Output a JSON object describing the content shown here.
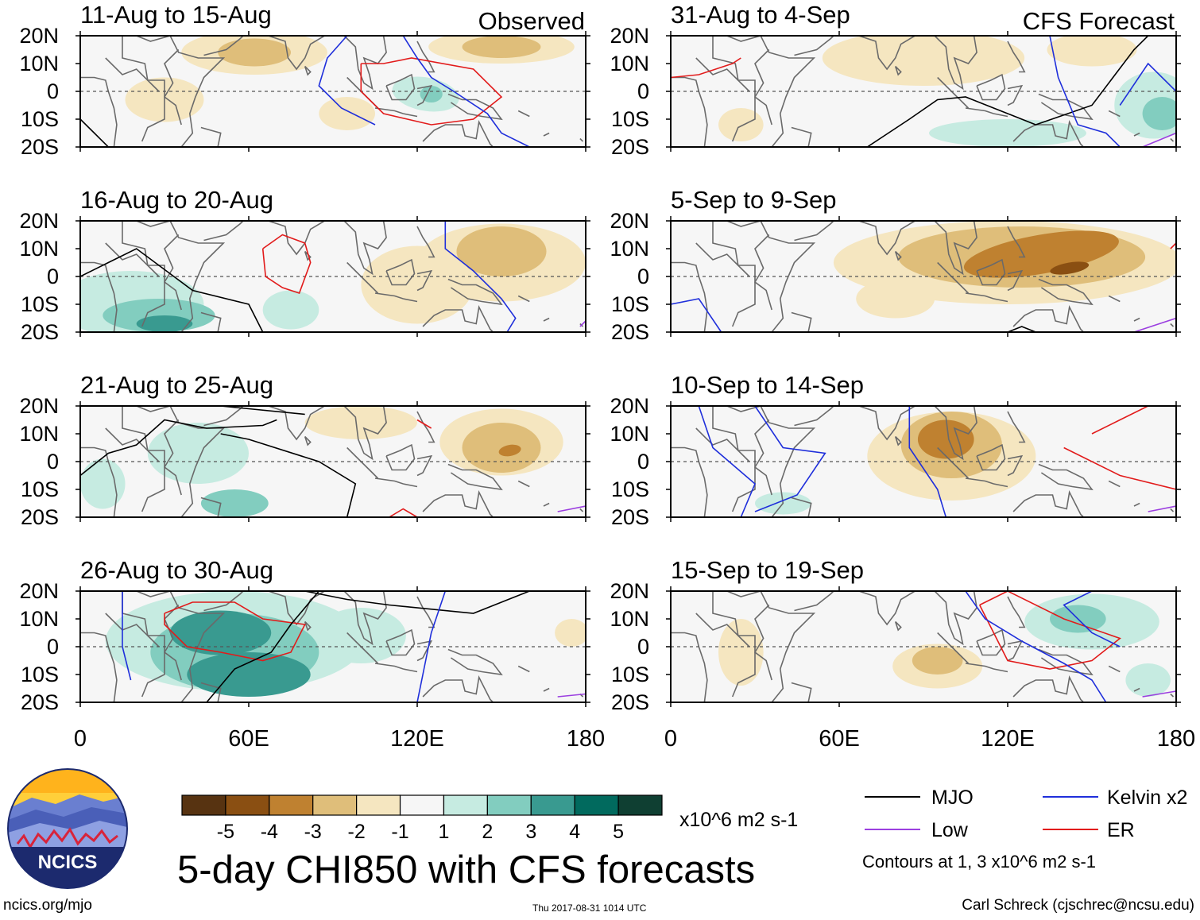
{
  "header": {
    "left_label": "Observed",
    "right_label": "CFS Forecast"
  },
  "chart_data": [
    {
      "type": "heatmap",
      "panel": "observed-1",
      "title": "11-Aug to 15-Aug",
      "xlim": [
        0,
        180
      ],
      "ylim": [
        -20,
        20
      ]
    },
    {
      "type": "heatmap",
      "panel": "observed-2",
      "title": "16-Aug to 20-Aug",
      "xlim": [
        0,
        180
      ],
      "ylim": [
        -20,
        20
      ]
    },
    {
      "type": "heatmap",
      "panel": "observed-3",
      "title": "21-Aug to 25-Aug",
      "xlim": [
        0,
        180
      ],
      "ylim": [
        -20,
        20
      ]
    },
    {
      "type": "heatmap",
      "panel": "observed-4",
      "title": "26-Aug to 30-Aug",
      "xlim": [
        0,
        180
      ],
      "ylim": [
        -20,
        20
      ]
    },
    {
      "type": "heatmap",
      "panel": "forecast-1",
      "title": "31-Aug to 4-Sep",
      "xlim": [
        0,
        180
      ],
      "ylim": [
        -20,
        20
      ]
    },
    {
      "type": "heatmap",
      "panel": "forecast-2",
      "title": "5-Sep to 9-Sep",
      "xlim": [
        0,
        180
      ],
      "ylim": [
        -20,
        20
      ]
    },
    {
      "type": "heatmap",
      "panel": "forecast-3",
      "title": "10-Sep to 14-Sep",
      "xlim": [
        0,
        180
      ],
      "ylim": [
        -20,
        20
      ]
    },
    {
      "type": "heatmap",
      "panel": "forecast-4",
      "title": "15-Sep to 19-Sep",
      "xlim": [
        0,
        180
      ],
      "ylim": [
        -20,
        20
      ]
    }
  ],
  "axes": {
    "y_ticks": [
      20,
      10,
      0,
      -10,
      -20
    ],
    "y_tick_labels": [
      "20N",
      "10N",
      "0",
      "10S",
      "20S"
    ],
    "x_ticks": [
      0,
      60,
      120,
      180
    ],
    "x_tick_labels": [
      "0",
      "60E",
      "120E",
      "180"
    ]
  },
  "colorbar": {
    "colors": [
      "#573311",
      "#8a4f12",
      "#bf8130",
      "#dfbe7a",
      "#f5e6c0",
      "#f6f6f6",
      "#c6ebe1",
      "#82cdbf",
      "#399a90",
      "#016a5e",
      "#0f3f32"
    ],
    "tick_labels": [
      "-5",
      "-4",
      "-3",
      "-2",
      "-1",
      "1",
      "2",
      "3",
      "4",
      "5"
    ],
    "units": "x10^6 m2 s-1"
  },
  "legend": {
    "items": [
      {
        "label": "MJO",
        "color": "#000000"
      },
      {
        "label": "Kelvin x2",
        "color": "#1f2fdb"
      },
      {
        "label": "Low",
        "color": "#9b3fe0"
      },
      {
        "label": "ER",
        "color": "#e21b1b"
      }
    ],
    "note": "Contours at 1, 3 x10^6 m2 s-1"
  },
  "main_title": "5-day CHI850 with CFS forecasts",
  "logo_text": "NCICS",
  "footer": {
    "url": "ncics.org/mjo",
    "timestamp": "Thu 2017-08-31 1014 UTC",
    "credit": "Carl Schreck (cjschrec@ncsu.edu)"
  }
}
